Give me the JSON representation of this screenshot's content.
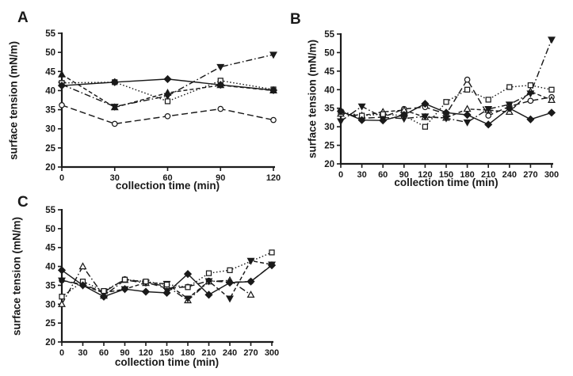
{
  "figure": {
    "background": "#ffffff",
    "ink_color": "#1a1a1a",
    "description_visible_text_only": true
  },
  "chart_data": [
    {
      "type": "line",
      "panel_label": "A",
      "xlabel": "collection time (min)",
      "ylabel": "surface tension (mN/m)",
      "xlim": [
        0,
        120
      ],
      "ylim": [
        20,
        55
      ],
      "xticks": [
        0,
        30,
        60,
        90,
        120
      ],
      "yticks": [
        20,
        25,
        30,
        35,
        40,
        45,
        50,
        55
      ],
      "grid": false,
      "legend": "none",
      "x": [
        0,
        30,
        60,
        90,
        120
      ],
      "series": [
        {
          "name": "open-circle-series",
          "marker": "circle",
          "fill": "open",
          "linestyle": "long-dash",
          "values": [
            36.2,
            31.3,
            33.3,
            35.2,
            32.3
          ]
        },
        {
          "name": "triangle-up-series",
          "marker": "triangle-up",
          "fill": "filled",
          "linestyle": "dashed",
          "values": [
            44.2,
            35.6,
            39.4,
            41.4,
            40.0
          ]
        },
        {
          "name": "triangle-down-series",
          "marker": "triangle-down",
          "fill": "filled",
          "linestyle": "dash-dot",
          "values": [
            41.6,
            35.8,
            38.6,
            46.2,
            49.4
          ]
        },
        {
          "name": "open-square-series",
          "marker": "square",
          "fill": "open",
          "linestyle": "dotted",
          "values": [
            42.0,
            42.2,
            37.2,
            42.6,
            40.3
          ]
        },
        {
          "name": "filled-diamond-series",
          "marker": "diamond",
          "fill": "filled",
          "linestyle": "solid",
          "values": [
            41.3,
            42.2,
            43.0,
            41.5,
            40.1
          ]
        }
      ]
    },
    {
      "type": "line",
      "panel_label": "B",
      "xlabel": "collection time (min)",
      "ylabel": "surface tension (mN/m)",
      "xlim": [
        0,
        300
      ],
      "ylim": [
        20,
        55
      ],
      "xticks": [
        0,
        30,
        60,
        90,
        120,
        150,
        180,
        210,
        240,
        270,
        300
      ],
      "yticks": [
        20,
        25,
        30,
        35,
        40,
        45,
        50,
        55
      ],
      "grid": false,
      "legend": "none",
      "x": [
        0,
        30,
        60,
        90,
        120,
        150,
        180,
        210,
        240,
        270,
        300
      ],
      "series": [
        {
          "name": "open-circle-series",
          "marker": "circle",
          "fill": "open",
          "linestyle": "long-dash",
          "values": [
            34.0,
            32.3,
            32.6,
            34.8,
            35.3,
            33.4,
            42.7,
            33.0,
            35.5,
            37.0,
            38.0
          ]
        },
        {
          "name": "triangle-up-series",
          "marker": "triangle-up",
          "fill": "open",
          "linestyle": "dashed",
          "values": [
            33.5,
            33.0,
            34.0,
            34.5,
            32.6,
            32.4,
            34.8,
            34.5,
            34.0,
            39.5,
            37.2
          ]
        },
        {
          "name": "triangle-down-series",
          "marker": "triangle-down",
          "fill": "filled",
          "linestyle": "dash-dot",
          "values": [
            31.5,
            35.5,
            32.5,
            32.2,
            32.8,
            32.3,
            31.2,
            34.8,
            36.0,
            39.0,
            53.5
          ]
        },
        {
          "name": "open-square-series",
          "marker": "square",
          "fill": "open",
          "linestyle": "dotted",
          "values": [
            34.0,
            33.0,
            33.4,
            33.0,
            30.0,
            36.7,
            40.0,
            37.3,
            40.7,
            41.2,
            40.0
          ]
        },
        {
          "name": "filled-diamond-series",
          "marker": "diamond",
          "fill": "filled",
          "linestyle": "solid",
          "values": [
            34.2,
            31.8,
            31.7,
            33.2,
            36.2,
            33.8,
            33.2,
            30.6,
            35.0,
            32.0,
            33.8
          ]
        }
      ]
    },
    {
      "type": "line",
      "panel_label": "C",
      "xlabel": "collection time (min)",
      "ylabel": "surface tension (mN/m)",
      "xlim": [
        0,
        300
      ],
      "ylim": [
        20,
        55
      ],
      "xticks": [
        0,
        30,
        60,
        90,
        120,
        150,
        180,
        210,
        240,
        270,
        300
      ],
      "yticks": [
        20,
        25,
        30,
        35,
        40,
        45,
        50,
        55
      ],
      "grid": false,
      "legend": "none",
      "x": [
        0,
        30,
        60,
        90,
        120,
        150,
        180,
        210,
        240,
        270,
        300
      ],
      "series": [
        {
          "name": "filled-circle-series",
          "marker": "circle",
          "fill": "filled",
          "linestyle": "long-dash",
          "values": [
            36.3,
            35.2,
            33.2,
            36.6,
            35.8,
            34.2,
            34.6,
            36.2,
            35.8,
            36.0,
            40.4
          ]
        },
        {
          "name": "triangle-up-series",
          "marker": "triangle-up",
          "fill": "open",
          "linestyle": "dash-dot",
          "values": [
            30.0,
            40.0,
            32.2,
            36.4,
            35.6,
            34.8,
            31.0,
            36.0,
            36.3,
            32.5,
            null
          ]
        },
        {
          "name": "triangle-down-series",
          "marker": "triangle-down",
          "fill": "filled",
          "linestyle": "dashed",
          "values": [
            36.3,
            35.0,
            33.0,
            34.0,
            35.7,
            35.4,
            31.5,
            36.1,
            31.5,
            41.5,
            40.5
          ]
        },
        {
          "name": "open-square-series",
          "marker": "square",
          "fill": "open",
          "linestyle": "dotted",
          "values": [
            32.0,
            36.0,
            33.5,
            36.5,
            36.0,
            35.2,
            34.5,
            38.2,
            39.0,
            null,
            43.7
          ]
        },
        {
          "name": "filled-diamond-series",
          "marker": "diamond",
          "fill": "filled",
          "linestyle": "solid",
          "values": [
            39.0,
            35.0,
            32.0,
            34.0,
            33.3,
            33.0,
            38.0,
            32.5,
            35.7,
            36.0,
            40.3
          ]
        }
      ]
    }
  ]
}
